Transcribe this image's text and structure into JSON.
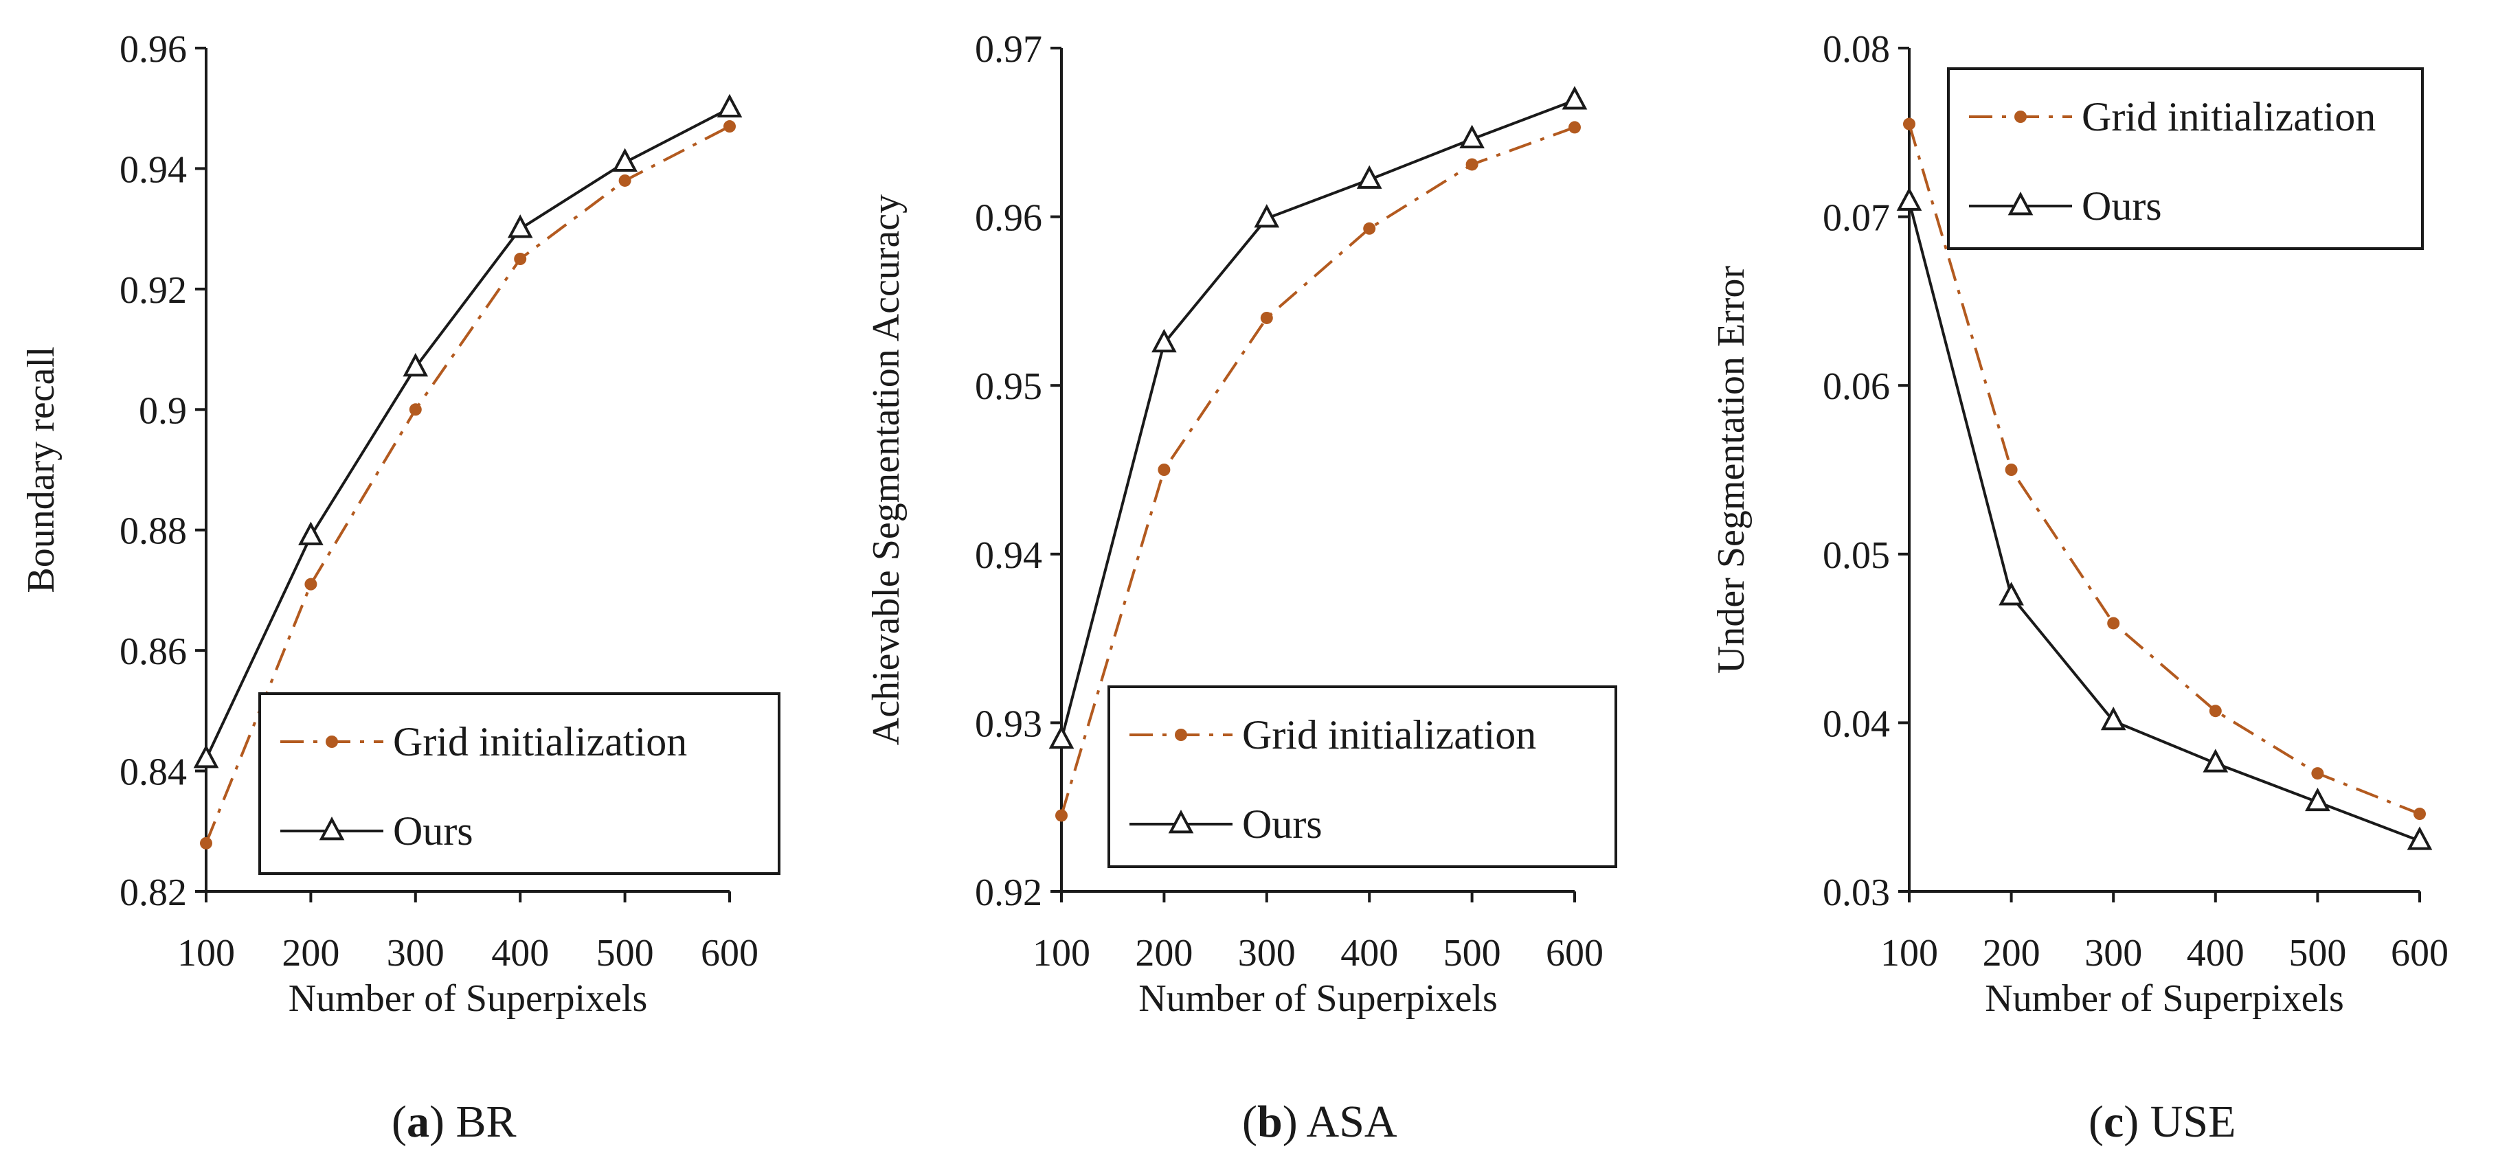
{
  "colors": {
    "grid_series": "#b35a1f",
    "ours_series": "#1a1a1a",
    "axis": "#1a1a1a",
    "legend_border": "#1a1a1a",
    "background": "#ffffff"
  },
  "chart_data": [
    {
      "type": "line",
      "title": "",
      "xlabel": "Number of Superpixels",
      "ylabel": "Boundary recall",
      "x": [
        100,
        200,
        300,
        400,
        500,
        600
      ],
      "xticks": [
        "100",
        "200",
        "300",
        "400",
        "500",
        "600"
      ],
      "ylim": [
        0.82,
        0.96
      ],
      "yticks": [
        0.82,
        0.84,
        0.86,
        0.88,
        0.9,
        0.92,
        0.94,
        0.96
      ],
      "ytick_labels": [
        "0.82",
        "0.84",
        "0.86",
        "0.88",
        "0.9",
        "0.92",
        "0.94",
        "0.96"
      ],
      "legend_position": "bottom-right",
      "series": [
        {
          "name": "Grid initialization",
          "style": "dash-dot",
          "marker": "dot",
          "values": [
            0.828,
            0.871,
            0.9,
            0.925,
            0.938,
            0.947
          ]
        },
        {
          "name": "Ours",
          "style": "solid",
          "marker": "triangle",
          "values": [
            0.842,
            0.879,
            0.907,
            0.93,
            0.941,
            0.95
          ]
        }
      ],
      "caption": {
        "label": "a",
        "text": "BR"
      }
    },
    {
      "type": "line",
      "title": "",
      "xlabel": "Number of Superpixels",
      "ylabel": "Achievable Segmentation Accuracy",
      "x": [
        100,
        200,
        300,
        400,
        500,
        600
      ],
      "xticks": [
        "100",
        "200",
        "300",
        "400",
        "500",
        "600"
      ],
      "ylim": [
        0.92,
        0.97
      ],
      "yticks": [
        0.92,
        0.93,
        0.94,
        0.95,
        0.96,
        0.97
      ],
      "ytick_labels": [
        "0.92",
        "0.93",
        "0.94",
        "0.95",
        "0.96",
        "0.97"
      ],
      "legend_position": "bottom-right",
      "series": [
        {
          "name": "Grid initialization",
          "style": "dash-dot",
          "marker": "dot",
          "values": [
            0.9245,
            0.945,
            0.954,
            0.9593,
            0.9631,
            0.9653
          ]
        },
        {
          "name": "Ours",
          "style": "solid",
          "marker": "triangle",
          "values": [
            0.929,
            0.9525,
            0.9599,
            0.9622,
            0.9646,
            0.9669
          ]
        }
      ],
      "caption": {
        "label": "b",
        "text": "ASA"
      }
    },
    {
      "type": "line",
      "title": "",
      "xlabel": "Number of Superpixels",
      "ylabel": "Under Segmentation Error",
      "x": [
        100,
        200,
        300,
        400,
        500,
        600
      ],
      "xticks": [
        "100",
        "200",
        "300",
        "400",
        "500",
        "600"
      ],
      "ylim": [
        0.03,
        0.08
      ],
      "yticks": [
        0.03,
        0.04,
        0.05,
        0.06,
        0.07,
        0.08
      ],
      "ytick_labels": [
        "0.03",
        "0.04",
        "0.05",
        "0.06",
        "0.07",
        "0.08"
      ],
      "legend_position": "top-right",
      "series": [
        {
          "name": "Grid initialization",
          "style": "dash-dot",
          "marker": "dot",
          "values": [
            0.0755,
            0.055,
            0.0459,
            0.0407,
            0.037,
            0.0346
          ]
        },
        {
          "name": "Ours",
          "style": "solid",
          "marker": "triangle",
          "values": [
            0.0709,
            0.0475,
            0.0401,
            0.0376,
            0.0353,
            0.033
          ]
        }
      ],
      "caption": {
        "label": "c",
        "text": "USE"
      }
    }
  ]
}
